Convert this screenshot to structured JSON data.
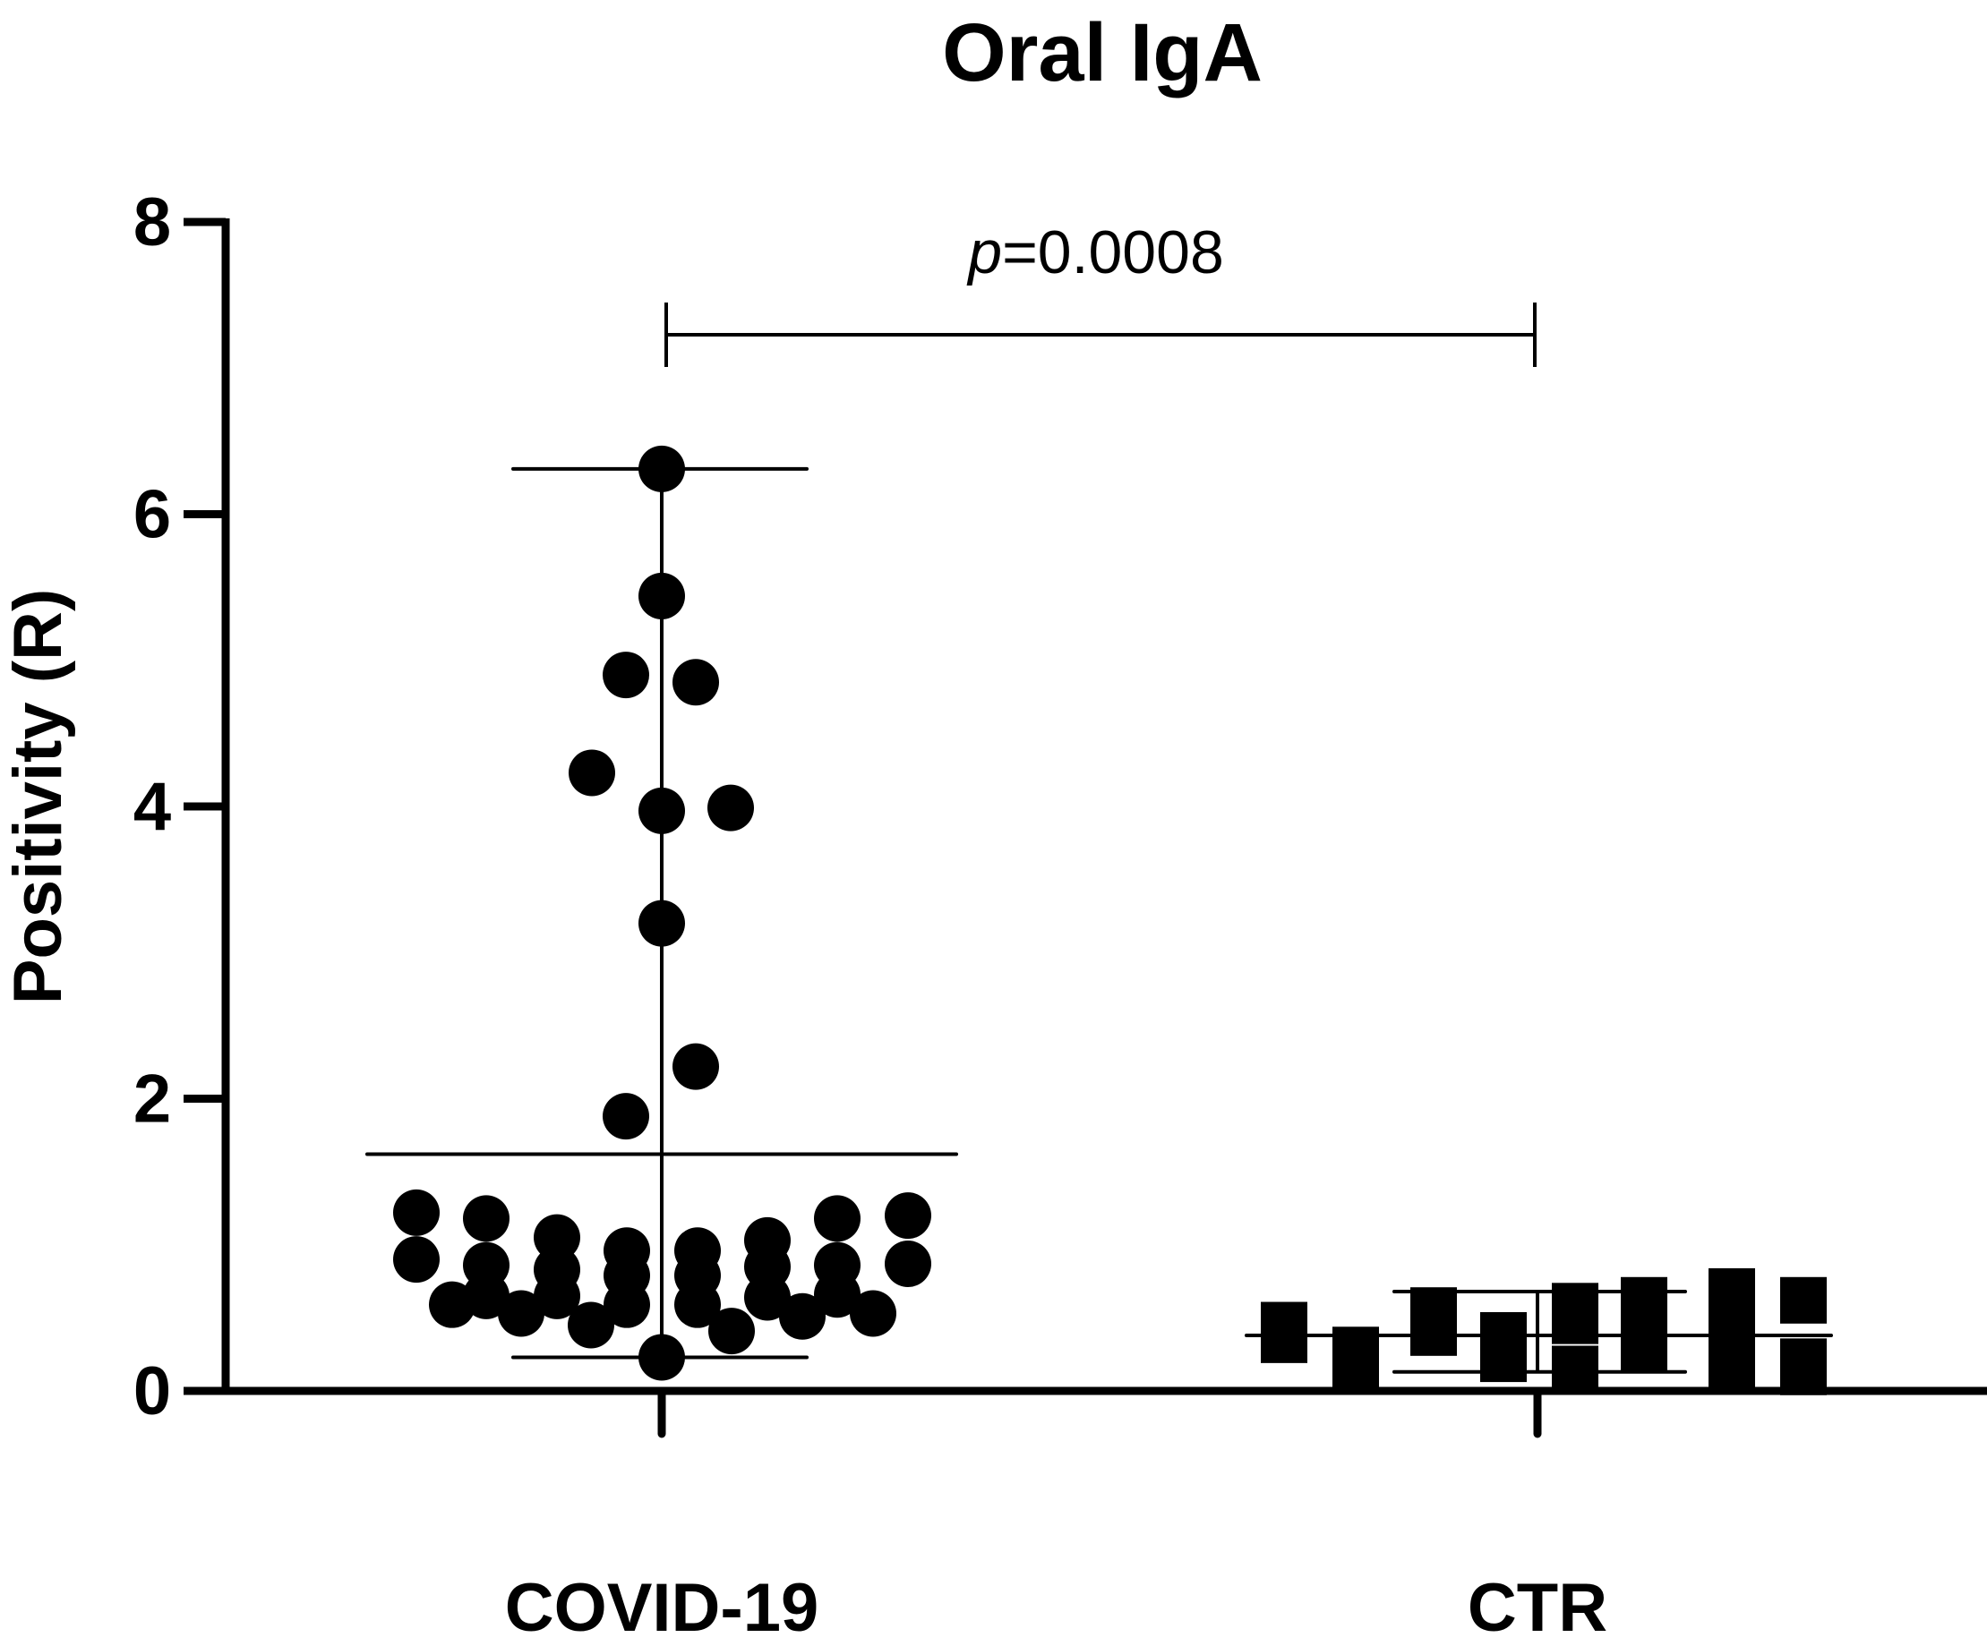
{
  "chart_data": {
    "type": "scatter",
    "title": "Oral IgA",
    "xlabel": "",
    "ylabel": "Positivity (R)",
    "ylim": [
      0,
      8
    ],
    "yticks": [
      "0",
      "2",
      "4",
      "6",
      "8"
    ],
    "categories": [
      "COVID-19",
      "CTR"
    ],
    "grid": false,
    "annotation": {
      "p_symbol": "p",
      "p_text": "=0.0008"
    },
    "series": [
      {
        "name": "COVID-19",
        "marker": "circle",
        "values": [
          6.31,
          5.44,
          4.9,
          4.85,
          4.23,
          3.97,
          3.99,
          3.2,
          2.22,
          1.88,
          1.22,
          0.9,
          0.59,
          1.18,
          0.86,
          0.65,
          0.53,
          1.05,
          0.83,
          0.65,
          0.45,
          0.96,
          0.79,
          0.59,
          0.23,
          0.96,
          0.79,
          0.59,
          0.41,
          1.03,
          0.85,
          0.64,
          0.51,
          1.18,
          0.86,
          0.66,
          0.53,
          1.2,
          0.87
        ],
        "mean": 1.62,
        "min": 0.23,
        "max": 6.31
      },
      {
        "name": "CTR",
        "marker": "square",
        "values": [
          0.45,
          0.25,
          0.4,
          0.22,
          0.58,
          0.35,
          0.18,
          0.62,
          0.4,
          0.15,
          0.55,
          0.38,
          0.15,
          0.62,
          0.4,
          0.2,
          0.35,
          0.28,
          0.4,
          0.3,
          0.48,
          0.3,
          0.68,
          0.13
        ],
        "mean": 0.38,
        "min": 0.13,
        "max": 0.68
      }
    ]
  }
}
